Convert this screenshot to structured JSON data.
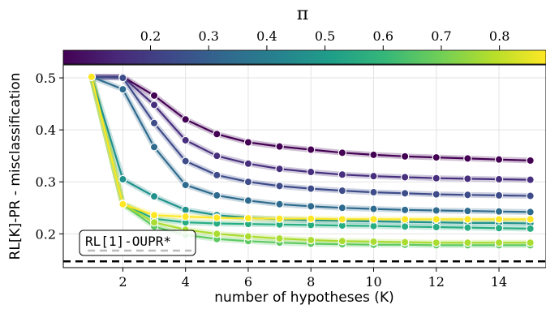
{
  "chart_data": {
    "type": "line",
    "xlabel": "number of hypotheses (K)",
    "ylabel": "RL[K]-PR - misclassification",
    "xlim": [
      0.1,
      15.5
    ],
    "ylim": [
      0.135,
      0.525
    ],
    "x_ticks": [
      2,
      4,
      6,
      8,
      10,
      12,
      14
    ],
    "y_ticks": [
      0.2,
      0.3,
      0.4,
      0.5
    ],
    "grid": true,
    "x": [
      1,
      2,
      3,
      4,
      5,
      6,
      7,
      8,
      9,
      10,
      11,
      12,
      13,
      14,
      15
    ],
    "series": [
      {
        "pi": 0.1,
        "color": "#440154",
        "values": [
          0.502,
          0.502,
          0.466,
          0.42,
          0.392,
          0.376,
          0.368,
          0.362,
          0.356,
          0.352,
          0.349,
          0.347,
          0.345,
          0.343,
          0.341
        ]
      },
      {
        "pi": 0.2,
        "color": "#472f7d",
        "values": [
          0.502,
          0.502,
          0.448,
          0.38,
          0.35,
          0.335,
          0.325,
          0.319,
          0.314,
          0.311,
          0.309,
          0.307,
          0.306,
          0.305,
          0.304
        ]
      },
      {
        "pi": 0.3,
        "color": "#3e4c8a",
        "values": [
          0.502,
          0.5,
          0.413,
          0.34,
          0.313,
          0.3,
          0.292,
          0.287,
          0.283,
          0.28,
          0.278,
          0.276,
          0.275,
          0.274,
          0.273
        ]
      },
      {
        "pi": 0.4,
        "color": "#2f6b8e",
        "values": [
          0.502,
          0.478,
          0.367,
          0.294,
          0.274,
          0.264,
          0.257,
          0.253,
          0.25,
          0.248,
          0.246,
          0.245,
          0.244,
          0.243,
          0.242
        ]
      },
      {
        "pi": 0.5,
        "color": "#21918c",
        "values": [
          0.502,
          0.305,
          0.272,
          0.246,
          0.236,
          0.231,
          0.228,
          0.226,
          0.225,
          0.224,
          0.223,
          0.222,
          0.221,
          0.221,
          0.22
        ]
      },
      {
        "pi": 0.6,
        "color": "#27ad81",
        "values": [
          0.502,
          0.258,
          0.229,
          0.222,
          0.22,
          0.219,
          0.218,
          0.217,
          0.216,
          0.215,
          0.214,
          0.213,
          0.212,
          0.211,
          0.21
        ]
      },
      {
        "pi": 0.7,
        "color": "#5ec962",
        "values": [
          0.502,
          0.257,
          0.214,
          0.198,
          0.19,
          0.186,
          0.183,
          0.181,
          0.18,
          0.179,
          0.179,
          0.178,
          0.178,
          0.178,
          0.178
        ]
      },
      {
        "pi": 0.8,
        "color": "#aadc32",
        "values": [
          0.502,
          0.257,
          0.222,
          0.208,
          0.2,
          0.195,
          0.191,
          0.188,
          0.186,
          0.185,
          0.184,
          0.183,
          0.183,
          0.183,
          0.183
        ]
      },
      {
        "pi": 0.9,
        "color": "#fde725",
        "values": [
          0.502,
          0.257,
          0.236,
          0.233,
          0.231,
          0.23,
          0.229,
          0.229,
          0.228,
          0.228,
          0.228,
          0.228,
          0.228,
          0.228,
          0.228
        ]
      }
    ],
    "reference_line": {
      "label": "RL[1]-OUPR*",
      "value": 0.147,
      "style": "dashed",
      "color": "#000000"
    },
    "colorbar": {
      "title": "π",
      "range": [
        0.05,
        0.88
      ],
      "ticks": [
        0.2,
        0.3,
        0.4,
        0.5,
        0.6,
        0.7,
        0.8
      ],
      "tick_labels": [
        "0.2",
        "0.3",
        "0.4",
        "0.5",
        "0.6",
        "0.7",
        "0.8"
      ],
      "colormap": [
        "#440154",
        "#482878",
        "#3e4989",
        "#31688e",
        "#26828e",
        "#1f9e89",
        "#35b779",
        "#6ece58",
        "#b5de2b",
        "#fde725"
      ]
    },
    "legend": {
      "placement": "lower-left",
      "entries": [
        "RL[1]-OUPR*"
      ]
    }
  }
}
